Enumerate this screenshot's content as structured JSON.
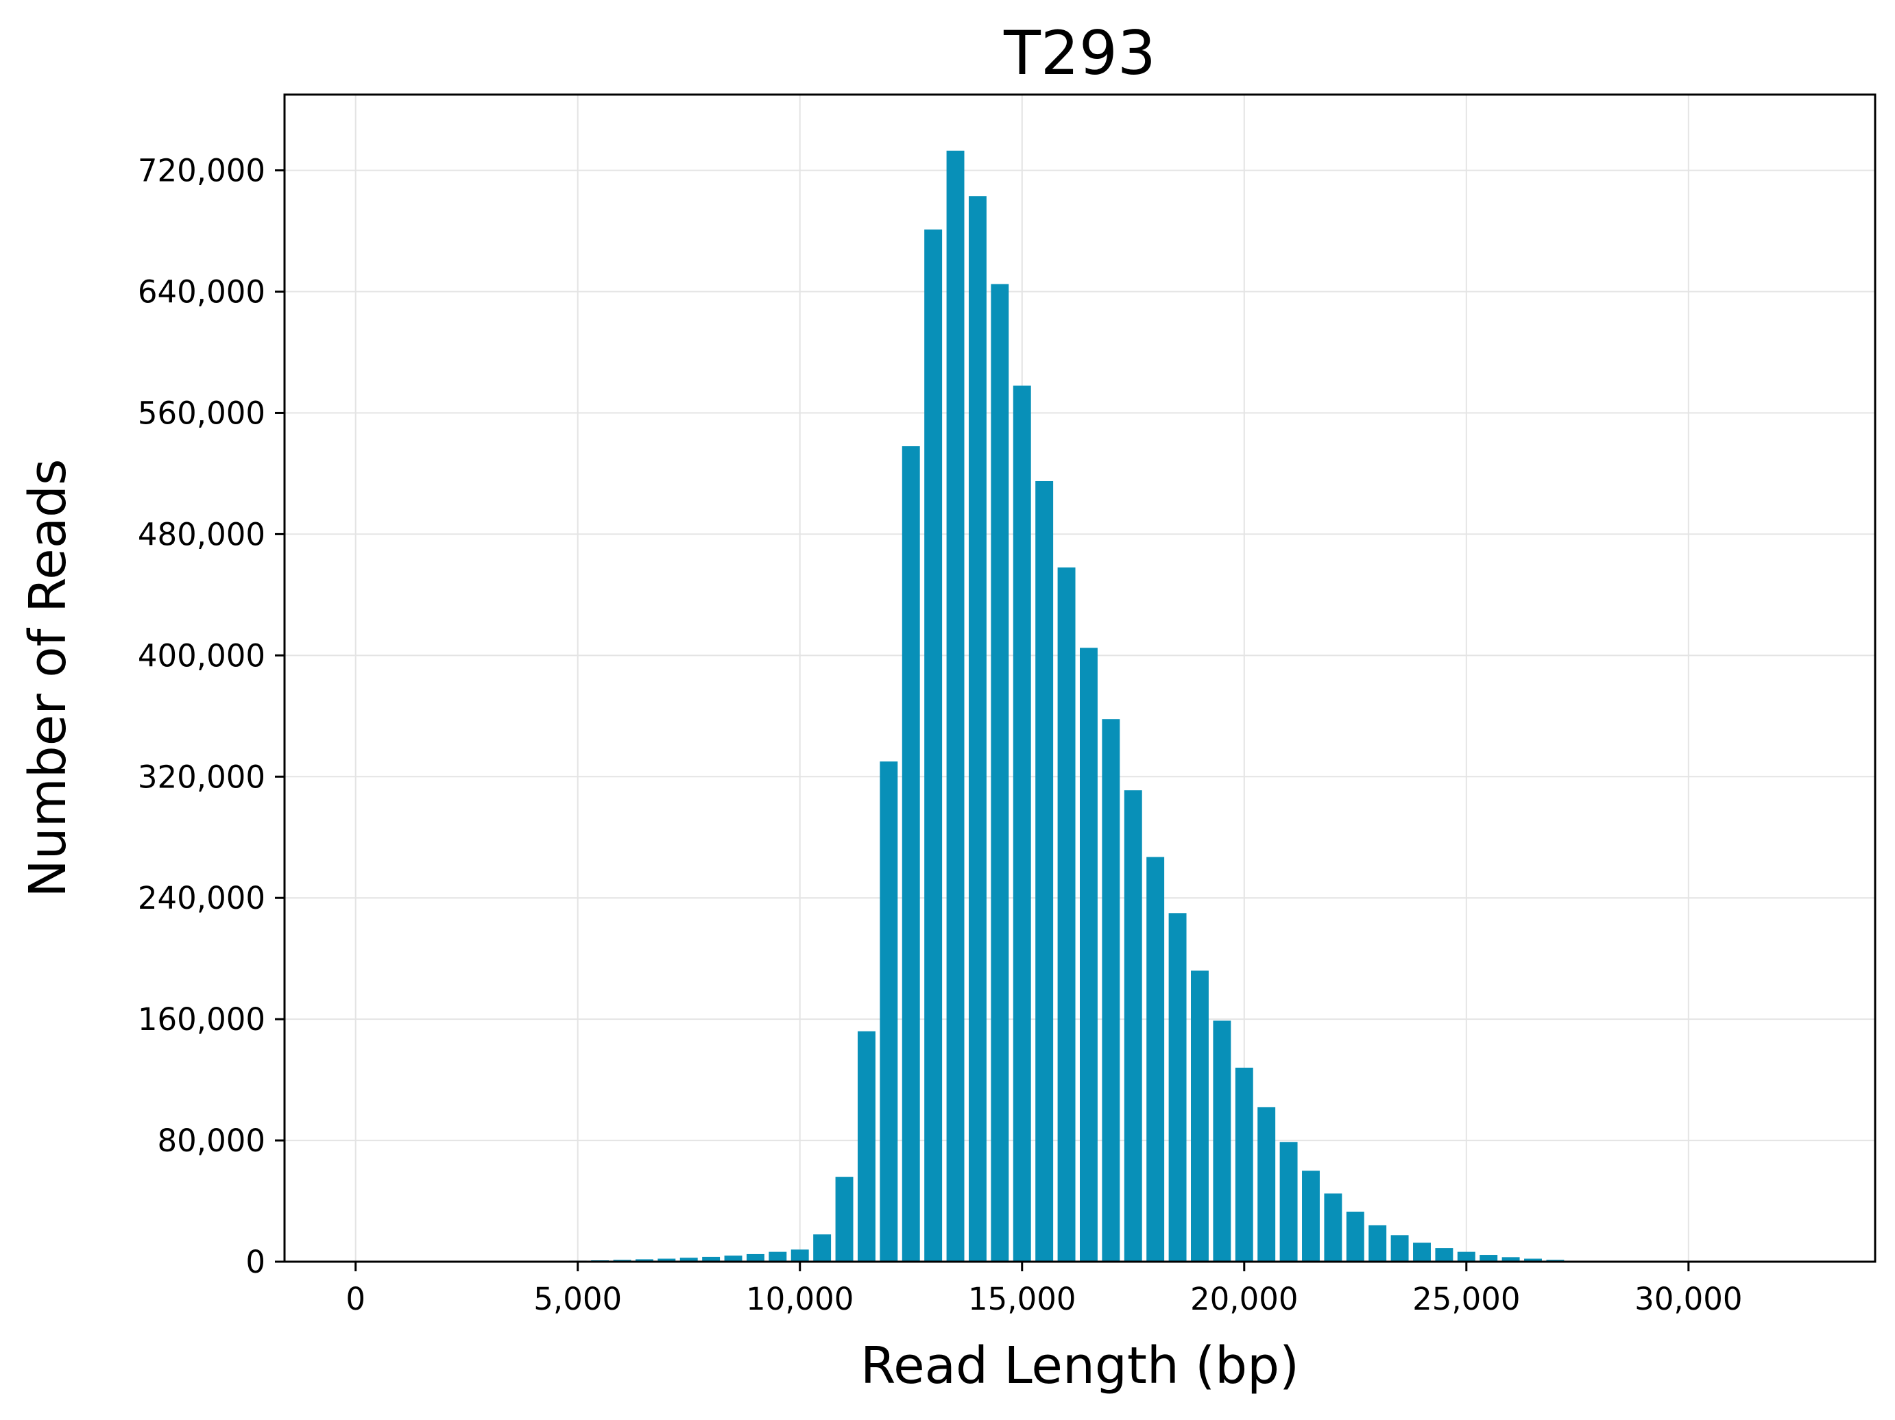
{
  "chart_data": {
    "type": "bar",
    "title": "T293",
    "xlabel": "Read Length (bp)",
    "ylabel": "Number of Reads",
    "xlim": [
      -1600,
      34200
    ],
    "ylim": [
      0,
      770000
    ],
    "grid": true,
    "legend": "none",
    "bar_color": "#0890B8",
    "xticks": [
      0,
      5000,
      10000,
      15000,
      20000,
      25000,
      30000
    ],
    "xtick_labels": [
      "0",
      "5,000",
      "10,000",
      "15,000",
      "20,000",
      "25,000",
      "30,000"
    ],
    "yticks": [
      0,
      80000,
      160000,
      240000,
      320000,
      400000,
      480000,
      560000,
      640000,
      720000
    ],
    "ytick_labels": [
      "0",
      "80,000",
      "160,000",
      "240,000",
      "320,000",
      "400,000",
      "480,000",
      "560,000",
      "640,000",
      "720,000"
    ],
    "bin_width": 500,
    "x": [
      4500,
      5000,
      5500,
      6000,
      6500,
      7000,
      7500,
      8000,
      8500,
      9000,
      9500,
      10000,
      10500,
      11000,
      11500,
      12000,
      12500,
      13000,
      13500,
      14000,
      14500,
      15000,
      15500,
      16000,
      16500,
      17000,
      17500,
      18000,
      18500,
      19000,
      19500,
      20000,
      20500,
      21000,
      21500,
      22000,
      22500,
      23000,
      23500,
      24000,
      24500,
      25000,
      25500,
      26000,
      26500,
      27000
    ],
    "values": [
      500,
      700,
      900,
      1200,
      1600,
      2000,
      2600,
      3200,
      4000,
      5000,
      6500,
      8000,
      18000,
      56000,
      152000,
      330000,
      538000,
      681000,
      733000,
      703000,
      645000,
      578000,
      515000,
      458000,
      405000,
      358000,
      311000,
      267000,
      230000,
      192000,
      159000,
      128000,
      102000,
      79000,
      60000,
      45000,
      33000,
      24000,
      17500,
      12500,
      9000,
      6500,
      4500,
      3000,
      2000,
      1200
    ]
  }
}
